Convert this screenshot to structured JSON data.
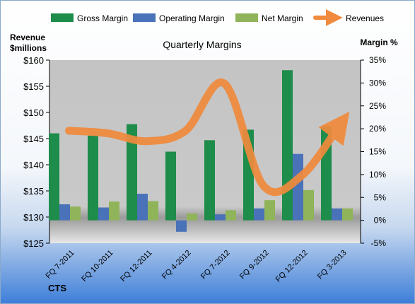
{
  "chart_data": {
    "type": "bar",
    "title": "Quarterly Margins",
    "left_axis_label": [
      "Revenue",
      "$millions"
    ],
    "right_axis_label": "Margin %",
    "footer": "CTS",
    "categories": [
      "FQ 7-2011",
      "FQ 10-2011",
      "FQ 12-2011",
      "FQ 4-2012",
      "FQ 7-2012",
      "FQ 9-2012",
      "FQ 12-2012",
      "FQ 3-2013"
    ],
    "left_axis": {
      "min": 125,
      "max": 160,
      "step": 5,
      "tick_labels": [
        "$125",
        "$130",
        "$135",
        "$140",
        "$145",
        "$150",
        "$155",
        "$160"
      ]
    },
    "right_axis": {
      "min": -5,
      "max": 35,
      "step": 5,
      "tick_labels": [
        "-5%",
        "0%",
        "5%",
        "10%",
        "15%",
        "20%",
        "25%",
        "30%",
        "35%"
      ]
    },
    "series": [
      {
        "name": "Gross Margin",
        "kind": "bar",
        "axis": "right",
        "unit": "%",
        "color": "#1e8c4a",
        "values": [
          19.0,
          18.5,
          21.0,
          15.0,
          17.5,
          19.8,
          32.8,
          20.5
        ]
      },
      {
        "name": "Operating Margin",
        "kind": "bar",
        "axis": "right",
        "unit": "%",
        "color": "#4a72b8",
        "values": [
          3.5,
          2.8,
          5.8,
          -2.5,
          1.3,
          2.6,
          14.5,
          2.6
        ]
      },
      {
        "name": "Net Margin",
        "kind": "bar",
        "axis": "right",
        "unit": "%",
        "color": "#8fb45a",
        "values": [
          3.0,
          4.1,
          4.2,
          1.5,
          2.2,
          4.4,
          6.6,
          2.6
        ]
      },
      {
        "name": "Revenues",
        "kind": "line",
        "axis": "left",
        "unit": "$M",
        "color": "#f08a3c",
        "values": [
          146.5,
          146.0,
          144.5,
          146.5,
          155.5,
          136.0,
          138.0,
          148.0
        ]
      }
    ],
    "legend": {
      "placement": "top",
      "entries": [
        "Gross Margin",
        "Operating Margin",
        "Net Margin",
        "Revenues"
      ]
    },
    "grid": false
  }
}
